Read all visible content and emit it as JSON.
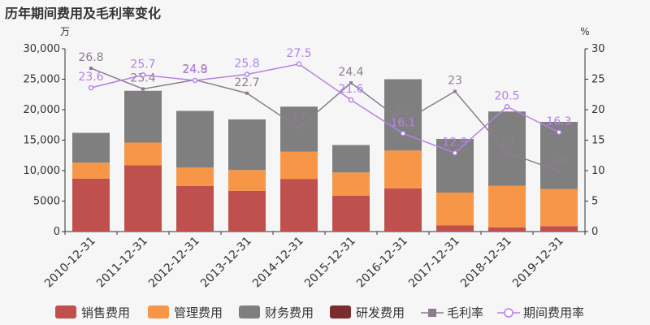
{
  "chart_data": {
    "type": "bar",
    "title": "历年期间费用及毛利率变化",
    "left_unit": "万",
    "right_unit": "%",
    "ylim": [
      0,
      30000
    ],
    "y_ticks": [
      "0",
      "5000",
      "10,000",
      "15,000",
      "20,000",
      "25,000",
      "30,000"
    ],
    "y2lim": [
      0,
      30
    ],
    "y2_ticks": [
      "0",
      "5",
      "10",
      "15",
      "20",
      "25",
      "30"
    ],
    "categories": [
      "2010-12-31",
      "2011-12-31",
      "2012-12-31",
      "2013-12-31",
      "2014-12-31",
      "2015-12-31",
      "2016-12-31",
      "2017-12-31",
      "2018-12-31",
      "2019-12-31"
    ],
    "stacked": true,
    "series": [
      {
        "name": "销售费用",
        "color": "#c0504d",
        "values": [
          8700,
          10900,
          7500,
          6700,
          8600,
          5900,
          7100,
          1000,
          700,
          900
        ]
      },
      {
        "name": "管理费用",
        "color": "#f79646",
        "values": [
          2600,
          3700,
          3000,
          3400,
          4500,
          3800,
          6200,
          5400,
          6800,
          6100
        ]
      },
      {
        "name": "财务费用",
        "color": "#7f7f7f",
        "values": [
          4900,
          8500,
          9300,
          8300,
          7400,
          4500,
          11700,
          8800,
          12200,
          11000
        ]
      },
      {
        "name": "研发费用",
        "color": "#7b2c2c",
        "values": [
          0,
          0,
          0,
          0,
          0,
          0,
          0,
          0,
          0,
          0
        ]
      }
    ],
    "lines": [
      {
        "name": "毛利率",
        "color": "#8c7d8e",
        "marker": "square",
        "axis": "right",
        "values": [
          26.8,
          23.4,
          24.9,
          22.7,
          17,
          24.4,
          18,
          23,
          13,
          9.9
        ]
      },
      {
        "name": "期间费用率",
        "color": "#b580e8",
        "marker": "circle",
        "axis": "right",
        "values": [
          23.6,
          25.7,
          24.8,
          25.8,
          27.5,
          21.6,
          16.1,
          12.9,
          20.5,
          16.3
        ]
      }
    ],
    "legend_position": "bottom"
  }
}
